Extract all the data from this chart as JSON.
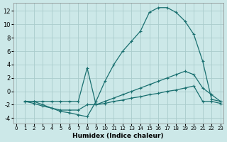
{
  "xlabel": "Humidex (Indice chaleur)",
  "background_color": "#cce8e8",
  "grid_color": "#aacccc",
  "line_color": "#1a7070",
  "xlim": [
    -0.3,
    23.3
  ],
  "ylim": [
    -4.8,
    13.2
  ],
  "xticks": [
    0,
    1,
    2,
    3,
    4,
    5,
    6,
    7,
    8,
    9,
    10,
    11,
    12,
    13,
    14,
    15,
    16,
    17,
    18,
    19,
    20,
    21,
    22,
    23
  ],
  "yticks": [
    -4,
    -2,
    0,
    2,
    4,
    6,
    8,
    10,
    12
  ],
  "curve1_x": [
    1,
    2,
    3,
    4,
    5,
    6,
    7,
    8,
    9,
    10,
    11,
    12,
    13,
    14,
    15,
    16,
    17,
    18,
    19,
    20,
    21,
    22,
    23
  ],
  "curve1_y": [
    -1.5,
    -1.5,
    -2.0,
    -2.5,
    -3.0,
    -3.2,
    -3.5,
    -3.8,
    -1.5,
    1.5,
    4.0,
    6.0,
    7.5,
    9.0,
    11.8,
    12.5,
    12.5,
    11.8,
    10.5,
    8.5,
    4.5,
    -1.2,
    -1.5
  ],
  "curve2_x": [
    1,
    2,
    3,
    4,
    5,
    6,
    7,
    8,
    9,
    10,
    11,
    12,
    13,
    14,
    15,
    16,
    17,
    18,
    19,
    20,
    21,
    22,
    23
  ],
  "curve2_y": [
    -1.5,
    -1.5,
    -1.5,
    -1.5,
    -1.5,
    -1.5,
    -1.5,
    3.5,
    -2.0,
    -1.5,
    -1.0,
    -0.5,
    0.0,
    0.5,
    1.0,
    1.5,
    2.0,
    2.5,
    3.0,
    2.5,
    0.5,
    -0.5,
    -1.5
  ],
  "curve3_x": [
    1,
    2,
    3,
    4,
    5,
    6,
    7,
    8,
    9,
    10,
    11,
    12,
    13,
    14,
    15,
    16,
    17,
    18,
    19,
    20,
    21,
    22,
    23
  ],
  "curve3_y": [
    -1.5,
    -1.8,
    -2.2,
    -2.5,
    -2.8,
    -2.8,
    -2.8,
    -2.0,
    -2.0,
    -1.8,
    -1.5,
    -1.3,
    -1.0,
    -0.8,
    -0.5,
    -0.3,
    0.0,
    0.2,
    0.5,
    0.8,
    -1.5,
    -1.5,
    -1.8
  ]
}
